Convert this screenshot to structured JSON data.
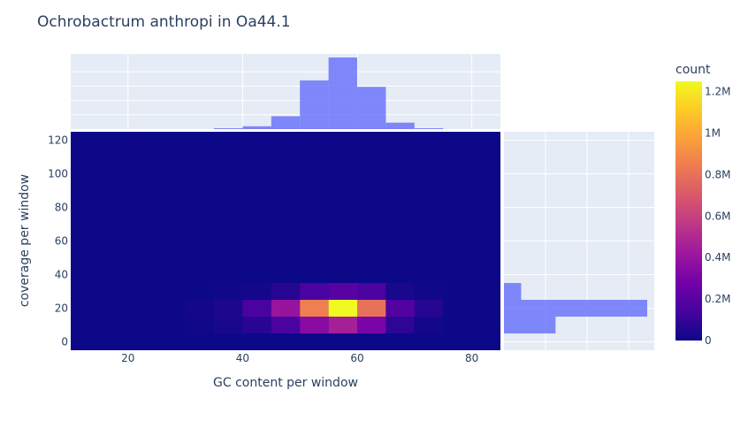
{
  "chart_data": {
    "type": "heatmap",
    "title": "Ochrobactrum anthropi in Oa44.1",
    "xlabel": "GC content per window",
    "ylabel": "coverage per window",
    "xlim": [
      10,
      85
    ],
    "ylim": [
      -5,
      125
    ],
    "x_ticks": [
      "20",
      "40",
      "60",
      "80"
    ],
    "y_ticks": [
      "0",
      "20",
      "40",
      "60",
      "80",
      "100",
      "120"
    ],
    "x_tick_values": [
      20,
      40,
      60,
      80
    ],
    "y_tick_values": [
      0,
      20,
      40,
      60,
      80,
      100,
      120
    ],
    "x_bin_edges": [
      30,
      35,
      40,
      45,
      50,
      55,
      60,
      65,
      70,
      75
    ],
    "y_bin_edges": [
      5,
      15,
      25,
      35
    ],
    "counts": [
      [
        10000,
        30000,
        70000,
        150000,
        350000,
        450000,
        300000,
        80000,
        20000
      ],
      [
        20000,
        40000,
        150000,
        400000,
        850000,
        1250000,
        800000,
        180000,
        60000
      ],
      [
        0,
        10000,
        20000,
        60000,
        150000,
        200000,
        150000,
        30000,
        10000
      ]
    ],
    "colorbar": {
      "title": "count",
      "max": 1250000,
      "ticks": [
        0,
        200000,
        400000,
        600000,
        800000,
        1000000,
        1200000
      ],
      "tick_labels": [
        "0",
        "0.2M",
        "0.4M",
        "0.6M",
        "0.8M",
        "1M",
        "1.2M"
      ]
    },
    "marginal_x": {
      "type": "histogram",
      "bin_edges": [
        35,
        40,
        45,
        50,
        55,
        60,
        65,
        70,
        75
      ],
      "values": [
        0.01,
        0.04,
        0.18,
        0.68,
        1.0,
        0.59,
        0.09,
        0.01
      ]
    },
    "marginal_y": {
      "type": "histogram",
      "bin_edges": [
        5,
        15,
        25,
        35
      ],
      "values": [
        0.36,
        1.0,
        0.12
      ]
    },
    "colors": {
      "plot_bg": "#e5ecf6",
      "grid": "#ffffff",
      "marginal_bar": "#636efa",
      "text": "#2a3f5f",
      "colorscale": [
        "#0d0887",
        "#46039f",
        "#7201a8",
        "#9c179e",
        "#bd3786",
        "#d8576b",
        "#ed7953",
        "#fb9f3a",
        "#fdca26",
        "#f0f921"
      ]
    }
  }
}
